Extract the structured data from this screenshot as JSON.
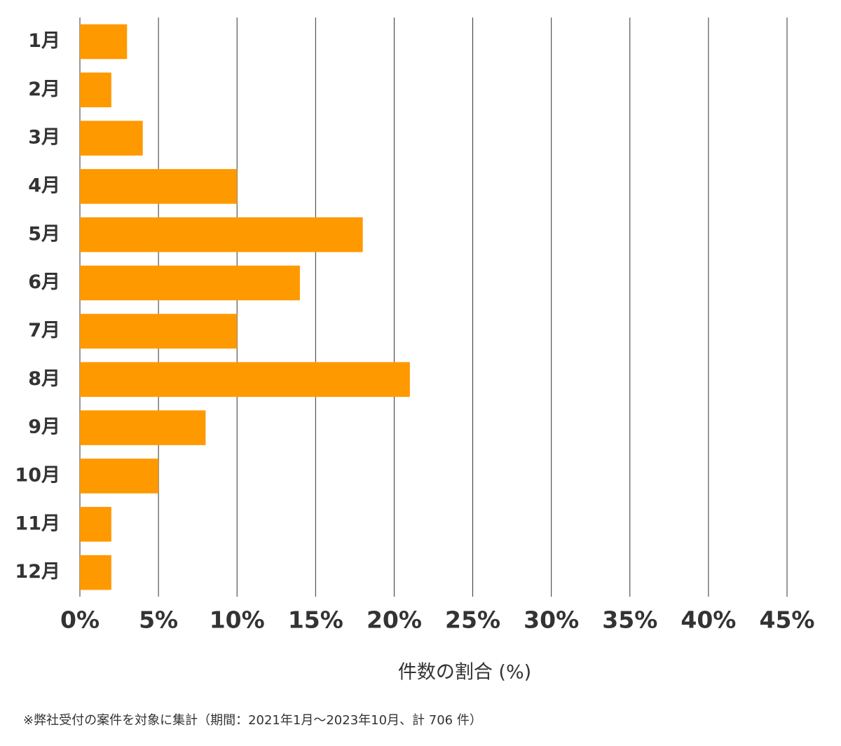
{
  "chart_data": {
    "type": "bar",
    "orientation": "horizontal",
    "categories": [
      "1月",
      "2月",
      "3月",
      "4月",
      "5月",
      "6月",
      "7月",
      "8月",
      "9月",
      "10月",
      "11月",
      "12月"
    ],
    "values": [
      3,
      2,
      4,
      10,
      18,
      14,
      10,
      21,
      8,
      5,
      2,
      2
    ],
    "color": "#ff9900",
    "xlim": [
      0,
      45
    ],
    "xticks": [
      {
        "value": 0,
        "label": "0%"
      },
      {
        "value": 5,
        "label": "5%"
      },
      {
        "value": 10,
        "label": "10%"
      },
      {
        "value": 15,
        "label": "15%"
      },
      {
        "value": 20,
        "label": "20%"
      },
      {
        "value": 25,
        "label": "25%"
      },
      {
        "value": 30,
        "label": "30%"
      },
      {
        "value": 35,
        "label": "35%"
      },
      {
        "value": 40,
        "label": "40%"
      },
      {
        "value": 45,
        "label": "45%"
      }
    ],
    "xlabel": "件数の割合 (%)",
    "grid": true,
    "footnote": "※弊社受付の案件を対象に集計（期間：2021年1月～2023年10月、計 706 件）"
  }
}
